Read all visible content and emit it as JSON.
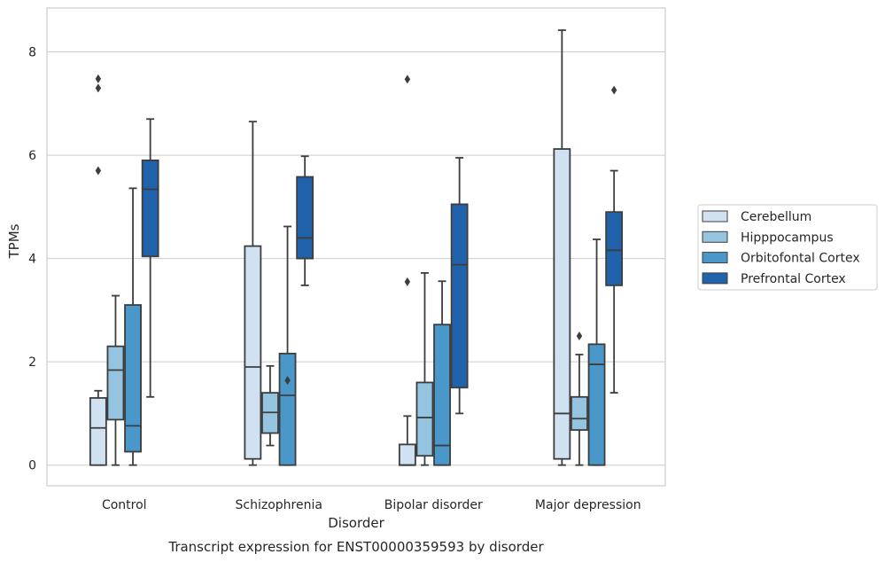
{
  "chart_data": {
    "type": "box",
    "title": "",
    "caption": "Transcript expression for ENST00000359593 by disorder",
    "xlabel": "Disorder",
    "ylabel": "TPMs",
    "ylim": [
      -0.4,
      8.85
    ],
    "yticks": [
      0,
      2,
      4,
      6,
      8
    ],
    "grid": true,
    "legend_position": "right",
    "categories": [
      "Control",
      "Schizophrenia",
      "Bipolar disorder",
      "Major depression"
    ],
    "series": [
      {
        "name": "Cerebellum",
        "color": "#d0e1f2",
        "boxes": [
          {
            "whislo": 0.0,
            "q1": 0.0,
            "med": 0.72,
            "q3": 1.3,
            "whishi": 1.44,
            "fliers": [
              5.7,
              7.3,
              7.48
            ]
          },
          {
            "whislo": 0.0,
            "q1": 0.12,
            "med": 1.9,
            "q3": 4.24,
            "whishi": 6.65,
            "fliers": []
          },
          {
            "whislo": 0.0,
            "q1": 0.0,
            "med": 0.0,
            "q3": 0.4,
            "whishi": 0.95,
            "fliers": [
              3.55,
              7.47
            ]
          },
          {
            "whislo": 0.0,
            "q1": 0.12,
            "med": 1.0,
            "q3": 6.12,
            "whishi": 8.42,
            "fliers": []
          }
        ]
      },
      {
        "name": "Hipppocampus",
        "color": "#94c4df",
        "boxes": [
          {
            "whislo": 0.0,
            "q1": 0.88,
            "med": 1.84,
            "q3": 2.3,
            "whishi": 3.28,
            "fliers": []
          },
          {
            "whislo": 0.38,
            "q1": 0.62,
            "med": 1.02,
            "q3": 1.4,
            "whishi": 1.92,
            "fliers": []
          },
          {
            "whislo": 0.0,
            "q1": 0.18,
            "med": 0.92,
            "q3": 1.6,
            "whishi": 3.72,
            "fliers": []
          },
          {
            "whislo": 0.0,
            "q1": 0.68,
            "med": 0.9,
            "q3": 1.32,
            "whishi": 2.14,
            "fliers": [
              2.5
            ]
          }
        ]
      },
      {
        "name": "Orbitofontal Cortex",
        "color": "#4a98c9",
        "boxes": [
          {
            "whislo": 0.0,
            "q1": 0.26,
            "med": 0.76,
            "q3": 3.1,
            "whishi": 5.36,
            "fliers": []
          },
          {
            "whislo": 0.0,
            "q1": 0.0,
            "med": 1.35,
            "q3": 2.16,
            "whishi": 4.62,
            "fliers": [
              1.64
            ]
          },
          {
            "whislo": 0.0,
            "q1": 0.0,
            "med": 0.38,
            "q3": 2.72,
            "whishi": 3.56,
            "fliers": []
          },
          {
            "whislo": 0.0,
            "q1": 0.0,
            "med": 1.95,
            "q3": 2.34,
            "whishi": 4.37,
            "fliers": []
          }
        ]
      },
      {
        "name": "Prefrontal Cortex",
        "color": "#2163aa",
        "boxes": [
          {
            "whislo": 1.32,
            "q1": 4.04,
            "med": 5.34,
            "q3": 5.9,
            "whishi": 6.7,
            "fliers": []
          },
          {
            "whislo": 3.48,
            "q1": 4.0,
            "med": 4.4,
            "q3": 5.58,
            "whishi": 5.98,
            "fliers": []
          },
          {
            "whislo": 1.0,
            "q1": 1.5,
            "med": 3.88,
            "q3": 5.05,
            "whishi": 5.95,
            "fliers": []
          },
          {
            "whislo": 1.4,
            "q1": 3.48,
            "med": 4.16,
            "q3": 4.9,
            "whishi": 5.7,
            "fliers": [
              7.26
            ]
          }
        ]
      }
    ]
  }
}
